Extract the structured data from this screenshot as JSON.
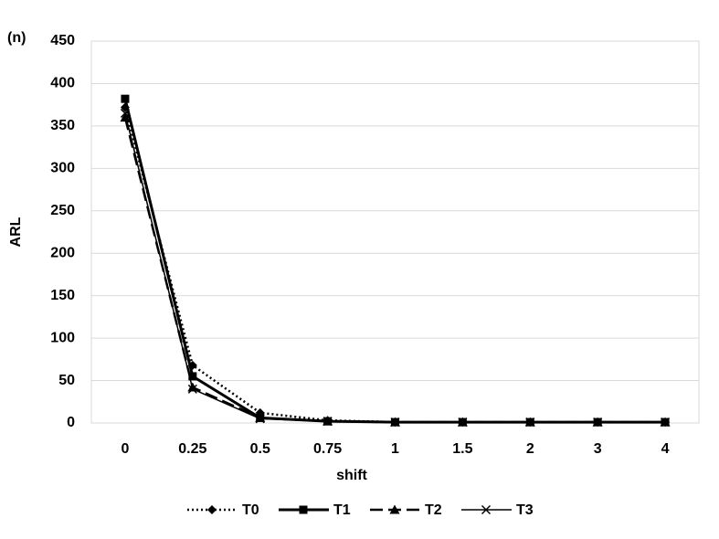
{
  "chart_data": {
    "type": "line",
    "annotation": "(n)",
    "x_label": "shift",
    "y_label": "ARL",
    "categories": [
      "0",
      "0.25",
      "0.5",
      "0.75",
      "1",
      "1.5",
      "2",
      "3",
      "4"
    ],
    "series": [
      {
        "name": "T0",
        "color": "#000000",
        "line_style": "dotted",
        "marker": "diamond",
        "values": [
          372,
          68,
          12,
          3,
          1,
          1,
          1,
          1,
          1
        ]
      },
      {
        "name": "T1",
        "color": "#000000",
        "line_style": "solid-thick",
        "marker": "square",
        "values": [
          382,
          55,
          6,
          2,
          1,
          1,
          1,
          1,
          1
        ]
      },
      {
        "name": "T2",
        "color": "#000000",
        "line_style": "long-dash",
        "marker": "triangle",
        "values": [
          360,
          42,
          6,
          2,
          1,
          1,
          1,
          1,
          1
        ]
      },
      {
        "name": "T3",
        "color": "#000000",
        "line_style": "solid-thin",
        "marker": "x",
        "values": [
          365,
          40,
          5,
          2,
          1,
          1,
          1,
          1,
          1
        ]
      }
    ],
    "ylim": [
      0,
      450
    ],
    "yticks": [
      0,
      50,
      100,
      150,
      200,
      250,
      300,
      350,
      400,
      450
    ],
    "grid": true,
    "legend": "bottom"
  }
}
